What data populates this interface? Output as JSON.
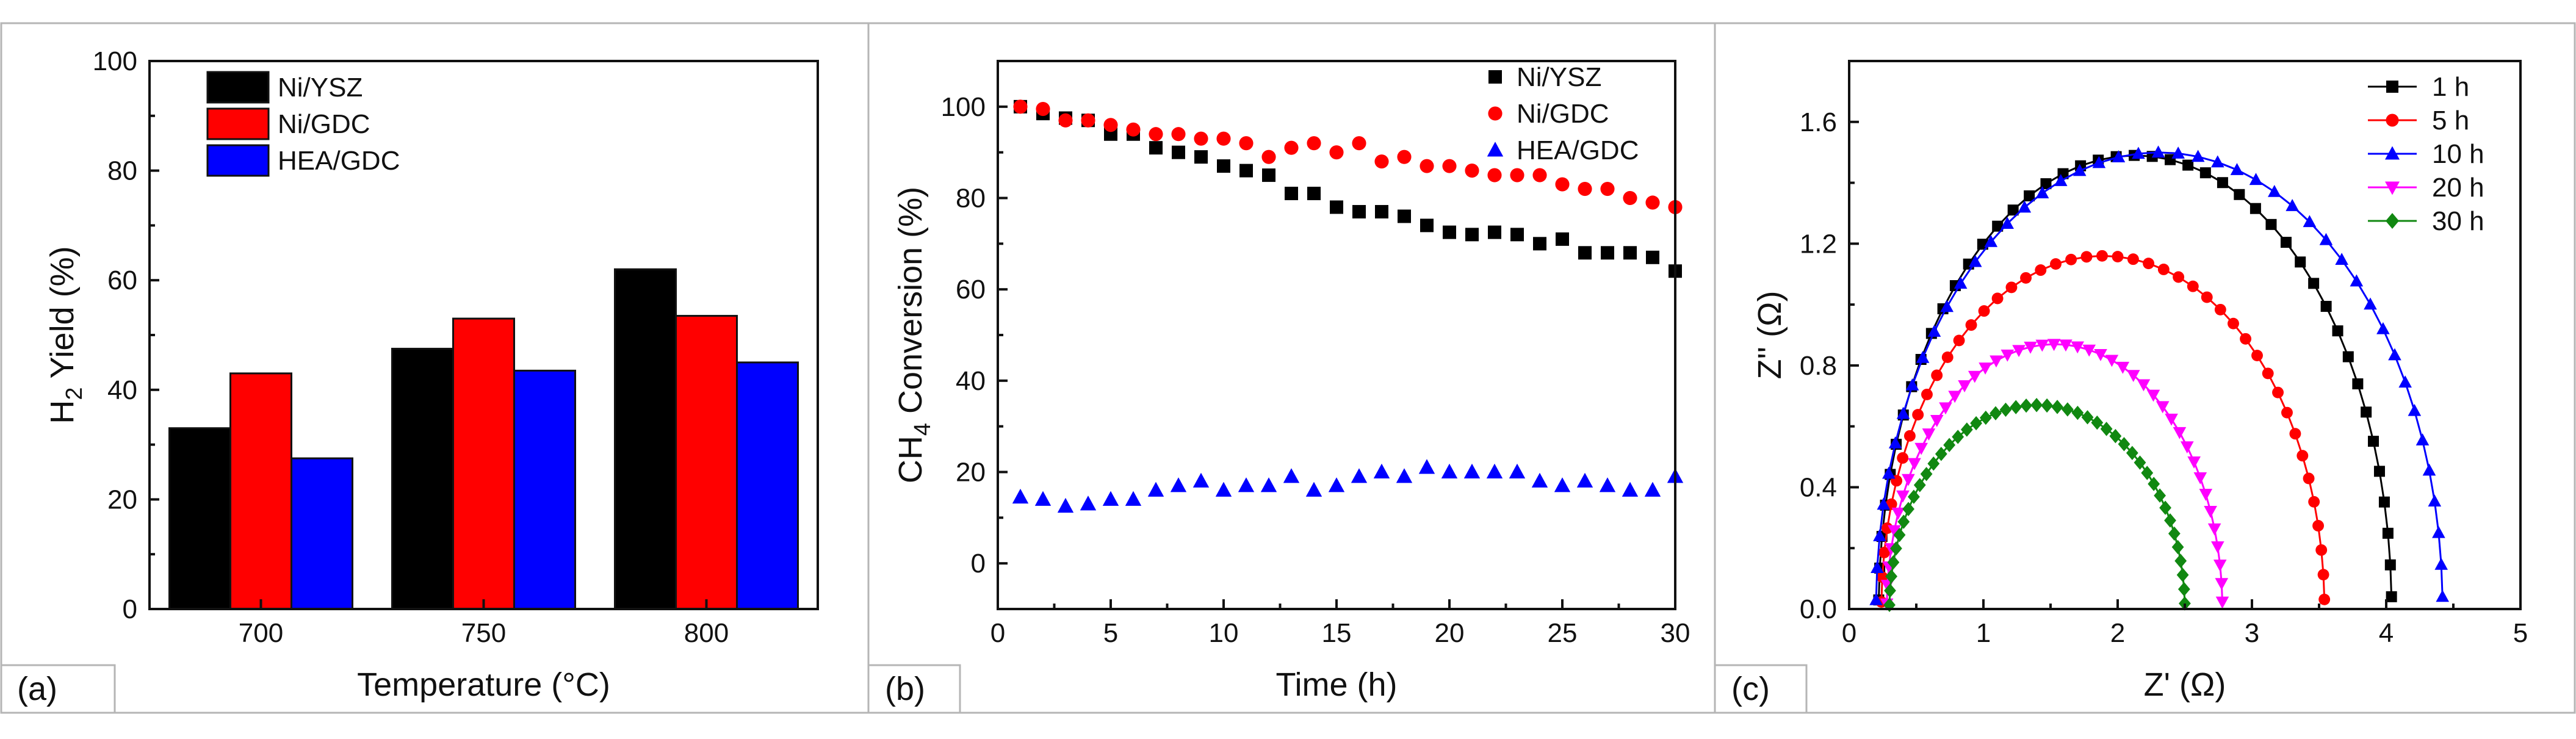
{
  "chart_data": [
    {
      "type": "bar",
      "panel_label": "(a)",
      "categories": [
        "700",
        "750",
        "800"
      ],
      "series": [
        {
          "name": "Ni/YSZ",
          "color": "#000000",
          "values": [
            33,
            47.5,
            62
          ]
        },
        {
          "name": "Ni/GDC",
          "color": "#ff0000",
          "values": [
            43,
            53,
            53.5
          ]
        },
        {
          "name": "HEA/GDC",
          "color": "#0000ff",
          "values": [
            27.5,
            43.5,
            45
          ]
        }
      ],
      "xlabel": "Temperature (°C)",
      "ylabel": {
        "pre": "H",
        "sub": "2",
        "post": " Yield (%)"
      },
      "ylim": [
        0,
        100
      ],
      "yticks": [
        "0",
        "20",
        "40",
        "60",
        "80",
        "100"
      ],
      "legend_position": "top-left"
    },
    {
      "type": "scatter",
      "panel_label": "(b)",
      "x": [
        1,
        2,
        3,
        4,
        5,
        6,
        7,
        8,
        9,
        10,
        11,
        12,
        13,
        14,
        15,
        16,
        17,
        18,
        19,
        20,
        21,
        22,
        23,
        24,
        25,
        26,
        27,
        28,
        29,
        30
      ],
      "series": [
        {
          "name": "Ni/YSZ",
          "color": "#000000",
          "marker": "square",
          "values": [
            100,
            98.5,
            97.5,
            97,
            94,
            94,
            91,
            90,
            89,
            87,
            86,
            85,
            81,
            81,
            78,
            77,
            77,
            76,
            74,
            72.5,
            72,
            72.5,
            72,
            70,
            71,
            68,
            68,
            68,
            67,
            64
          ]
        },
        {
          "name": "Ni/GDC",
          "color": "#ff0000",
          "marker": "circle",
          "values": [
            100,
            99.5,
            97,
            97,
            96,
            95,
            94,
            94,
            93,
            93,
            92,
            89,
            91,
            92,
            90,
            92,
            88,
            89,
            87,
            87,
            86,
            85,
            85,
            85,
            83,
            82,
            82,
            80,
            79,
            78
          ]
        },
        {
          "name": "HEA/GDC",
          "color": "#0000ff",
          "marker": "triangle",
          "values": [
            14.5,
            14,
            12.5,
            13,
            14,
            14,
            16,
            17,
            18,
            16,
            17,
            17,
            19,
            16,
            17,
            19,
            20,
            19,
            21,
            20,
            20,
            20,
            20,
            18,
            17,
            18,
            17,
            16,
            16,
            19
          ]
        }
      ],
      "xlabel": "Time (h)",
      "ylabel": {
        "pre": "CH",
        "sub": "4",
        "post": " Conversion (%)"
      },
      "xlim": [
        0,
        30
      ],
      "ylim": [
        -10,
        110
      ],
      "xticks": [
        "0",
        "5",
        "10",
        "15",
        "20",
        "25",
        "30"
      ],
      "yticks": [
        "0",
        "20",
        "40",
        "60",
        "80",
        "100"
      ],
      "legend_position": "top-right"
    },
    {
      "type": "line",
      "panel_label": "(c)",
      "series": [
        {
          "name": "1 h",
          "color": "#000000",
          "marker": "square",
          "r0": 0.22,
          "r1": 4.04,
          "peak": 1.49
        },
        {
          "name": "5 h",
          "color": "#ff0000",
          "marker": "circle",
          "r0": 0.24,
          "r1": 3.54,
          "peak": 1.16
        },
        {
          "name": "10 h",
          "color": "#0000ff",
          "marker": "triangle",
          "r0": 0.2,
          "r1": 4.42,
          "peak": 1.5
        },
        {
          "name": "20 h",
          "color": "#ff00ff",
          "marker": "triangle-down",
          "r0": 0.28,
          "r1": 2.78,
          "peak": 0.87
        },
        {
          "name": "30 h",
          "color": "#118811",
          "marker": "diamond",
          "r0": 0.3,
          "r1": 2.5,
          "peak": 0.67
        }
      ],
      "xlabel": "Z' (Ω)",
      "ylabel": "Z'' (Ω)",
      "xlim": [
        0,
        5
      ],
      "ylim": [
        0,
        1.8
      ],
      "xticks": [
        "0",
        "1",
        "2",
        "3",
        "4",
        "5"
      ],
      "yticks": [
        "0.0",
        "0.4",
        "0.8",
        "1.2",
        "1.6"
      ],
      "legend_position": "top-right"
    }
  ]
}
